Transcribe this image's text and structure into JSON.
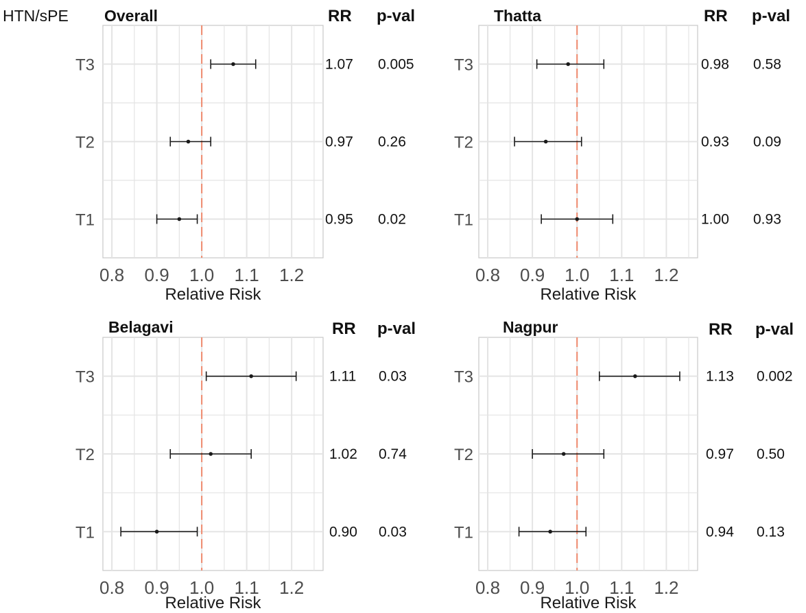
{
  "figure": {
    "corner_label": "HTN/sPE",
    "rr_header": "RR",
    "pval_header": "p-val"
  },
  "chart_data": [
    {
      "type": "forest",
      "title": "Overall",
      "xlabel": "Relative Risk",
      "categories": [
        "T3",
        "T2",
        "T1"
      ],
      "xlim": [
        0.78,
        1.27
      ],
      "xticks": [
        "0.8",
        "0.9",
        "1.0",
        "1.1",
        "1.2"
      ],
      "reference_line": 1.0,
      "points": [
        {
          "label": "T3",
          "rr": 1.07,
          "lower": 1.02,
          "upper": 1.12,
          "rr_text": "1.07",
          "p_text": "0.005"
        },
        {
          "label": "T2",
          "rr": 0.97,
          "lower": 0.93,
          "upper": 1.02,
          "rr_text": "0.97",
          "p_text": "0.26"
        },
        {
          "label": "T1",
          "rr": 0.95,
          "lower": 0.9,
          "upper": 0.99,
          "rr_text": "0.95",
          "p_text": "0.02"
        }
      ]
    },
    {
      "type": "forest",
      "title": "Thatta",
      "xlabel": "Relative Risk",
      "categories": [
        "T3",
        "T2",
        "T1"
      ],
      "xlim": [
        0.78,
        1.27
      ],
      "xticks": [
        "0.8",
        "0.9",
        "1.0",
        "1.1",
        "1.2"
      ],
      "reference_line": 1.0,
      "points": [
        {
          "label": "T3",
          "rr": 0.98,
          "lower": 0.91,
          "upper": 1.06,
          "rr_text": "0.98",
          "p_text": "0.58"
        },
        {
          "label": "T2",
          "rr": 0.93,
          "lower": 0.86,
          "upper": 1.01,
          "rr_text": "0.93",
          "p_text": "0.09"
        },
        {
          "label": "T1",
          "rr": 1.0,
          "lower": 0.92,
          "upper": 1.08,
          "rr_text": "1.00",
          "p_text": "0.93"
        }
      ]
    },
    {
      "type": "forest",
      "title": "Belagavi",
      "xlabel": "Relative Risk",
      "categories": [
        "T3",
        "T2",
        "T1"
      ],
      "xlim": [
        0.78,
        1.27
      ],
      "xticks": [
        "0.8",
        "0.9",
        "1.0",
        "1.1",
        "1.2"
      ],
      "reference_line": 1.0,
      "points": [
        {
          "label": "T3",
          "rr": 1.11,
          "lower": 1.01,
          "upper": 1.21,
          "rr_text": "1.11",
          "p_text": "0.03"
        },
        {
          "label": "T2",
          "rr": 1.02,
          "lower": 0.93,
          "upper": 1.11,
          "rr_text": "1.02",
          "p_text": "0.74"
        },
        {
          "label": "T1",
          "rr": 0.9,
          "lower": 0.82,
          "upper": 0.99,
          "rr_text": "0.90",
          "p_text": "0.03"
        }
      ]
    },
    {
      "type": "forest",
      "title": "Nagpur",
      "xlabel": "Relative Risk",
      "categories": [
        "T3",
        "T2",
        "T1"
      ],
      "xlim": [
        0.78,
        1.27
      ],
      "xticks": [
        "0.8",
        "0.9",
        "1.0",
        "1.1",
        "1.2"
      ],
      "reference_line": 1.0,
      "points": [
        {
          "label": "T3",
          "rr": 1.13,
          "lower": 1.05,
          "upper": 1.23,
          "rr_text": "1.13",
          "p_text": "0.002"
        },
        {
          "label": "T2",
          "rr": 0.97,
          "lower": 0.9,
          "upper": 1.06,
          "rr_text": "0.97",
          "p_text": "0.50"
        },
        {
          "label": "T1",
          "rr": 0.94,
          "lower": 0.87,
          "upper": 1.02,
          "rr_text": "0.94",
          "p_text": "0.13"
        }
      ]
    }
  ],
  "colors": {
    "reference_line": "#F08A6E",
    "grid": "#E4E4E4",
    "panel_border": "#C8C8C8",
    "marks": "#1A1A1A"
  }
}
